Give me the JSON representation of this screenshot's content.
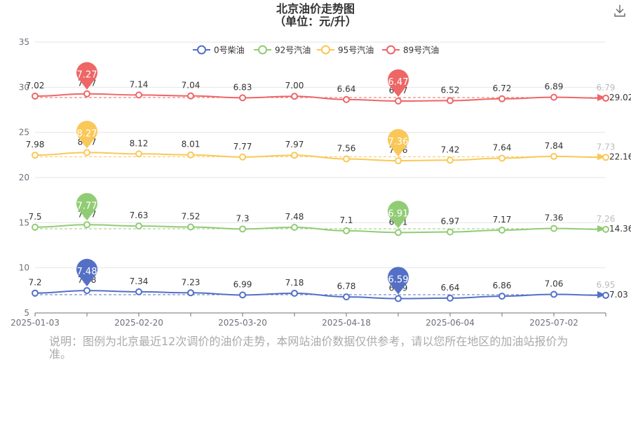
{
  "chart_data": {
    "type": "line",
    "title": "北京油价走势图",
    "subtitle": "（单位：元/升）",
    "x_ticks": [
      "2025-01-03",
      "2025-02-20",
      "2025-03-20",
      "2025-04-18",
      "2025-06-04",
      "2025-07-02"
    ],
    "ylim": [
      5,
      35
    ],
    "y_ticks": [
      5,
      10,
      15,
      20,
      25,
      30,
      35
    ],
    "grid": true,
    "legend_position": "top-center",
    "series": [
      {
        "name": "0号柴油",
        "color": "#5470c6",
        "values": [
          7.2,
          7.48,
          7.34,
          7.23,
          6.99,
          7.18,
          6.78,
          6.59,
          6.64,
          6.86,
          7.06,
          6.95
        ],
        "labels": [
          "7.2",
          "7.48",
          "7.34",
          "7.23",
          "6.99",
          "7.18",
          "6.78",
          "6.59",
          "6.64",
          "6.86",
          "7.06",
          "6.95"
        ],
        "max_pin": "7.48",
        "min_pin": "6.59",
        "avg_value": "7.03"
      },
      {
        "name": "92号汽油",
        "color": "#91cc75",
        "values": [
          7.5,
          7.77,
          7.63,
          7.52,
          7.3,
          7.48,
          7.1,
          6.91,
          6.97,
          7.17,
          7.36,
          7.26
        ],
        "labels": [
          "7.5",
          "7.77",
          "7.63",
          "7.52",
          "7.3",
          "7.48",
          "7.1",
          "6.91",
          "6.97",
          "7.17",
          "7.36",
          "7.26"
        ],
        "max_pin": "7.77",
        "min_pin": "6.91",
        "avg_value": "14.36"
      },
      {
        "name": "95号汽油",
        "color": "#fac858",
        "values": [
          7.98,
          8.27,
          8.12,
          8.01,
          7.77,
          7.97,
          7.56,
          7.36,
          7.42,
          7.64,
          7.84,
          7.73
        ],
        "labels": [
          "7.98",
          "8.27",
          "8.12",
          "8.01",
          "7.77",
          "7.97",
          "7.56",
          "7.36",
          "7.42",
          "7.64",
          "7.84",
          "7.73"
        ],
        "max_pin": "8.27",
        "min_pin": "7.36",
        "avg_value": "22.16"
      },
      {
        "name": "89号汽油",
        "color": "#ee6666",
        "values": [
          7.02,
          7.27,
          7.14,
          7.04,
          6.83,
          7.0,
          6.64,
          6.47,
          6.52,
          6.72,
          6.89,
          6.79
        ],
        "labels": [
          "7.02",
          "7.27",
          "7.14",
          "7.04",
          "6.83",
          "7.00",
          "6.64",
          "6.47",
          "6.52",
          "6.72",
          "6.89",
          "6.79"
        ],
        "max_pin": "7.27",
        "min_pin": "6.47",
        "avg_value": "29.02"
      }
    ]
  },
  "note": "说明：图例为北京最近12次调价的油价走势，本网站油价数据仅供参考，请以您所在地区的加油站报价为准。",
  "download_icon": "download-icon"
}
